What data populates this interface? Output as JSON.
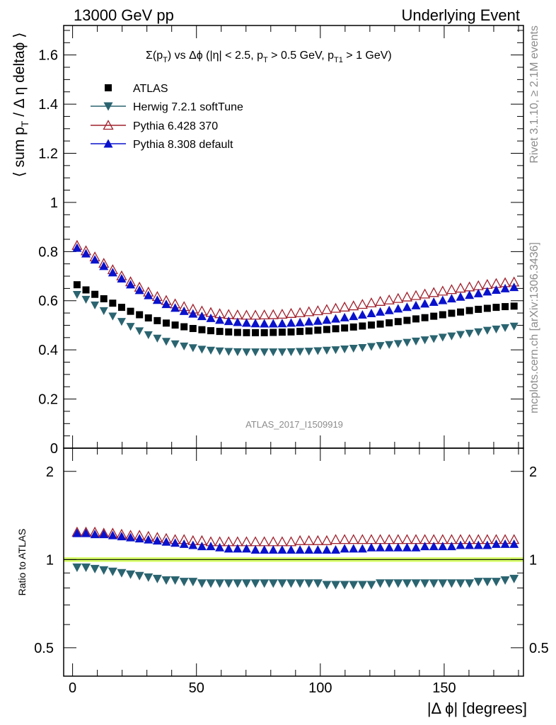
{
  "header": {
    "left": "13000 GeV pp",
    "right": "Underlying Event"
  },
  "side_labels": {
    "rivet": "Rivet 3.1.10, ≥ 2.1M events",
    "mcplots": "mcplots.cern.ch [arXiv:1306.3436]"
  },
  "chart_data": [
    {
      "type": "scatter",
      "title": "Σ(pT) vs Δϕ (|η| < 2.5, pT > 0.5 GeV, pT1 > 1 GeV)",
      "title_parts": {
        "sum": "Σ(p",
        "sub_t": "T",
        "rest1": ") vs Δϕ (|η| < 2.5, p",
        "rest2": " > 0.5 GeV, p",
        "sub_t1": "T1",
        "rest3": " > 1 GeV)"
      },
      "ylabel": "⟨ sum pT / Δ η deltaϕ ⟩",
      "ylabel_parts": {
        "a": "⟨ sum p",
        "sub": "T",
        "b": " / Δ η deltaϕ ⟩"
      },
      "analysis_label": "ATLAS_2017_I1509919",
      "xlim": [
        -3.6,
        182
      ],
      "ylim": [
        0,
        1.72
      ],
      "yticks": [
        "0",
        "0.2",
        "0.4",
        "0.6",
        "0.8",
        "1",
        "1.2",
        "1.4",
        "1.6"
      ],
      "x": [
        1.8,
        5.4,
        9,
        12.6,
        16.2,
        19.8,
        23.4,
        27,
        30.6,
        34.2,
        37.8,
        41.4,
        45,
        48.6,
        52.2,
        55.8,
        59.4,
        63,
        66.6,
        70.2,
        73.8,
        77.4,
        81,
        84.6,
        88.2,
        91.8,
        95.4,
        99,
        102.6,
        106.2,
        109.8,
        113.4,
        117,
        120.6,
        124.2,
        127.8,
        131.4,
        135,
        138.6,
        142.2,
        145.8,
        149.4,
        153,
        156.6,
        160.2,
        163.8,
        167.4,
        171,
        174.6,
        178.2
      ],
      "series": [
        {
          "name": "ATLAS",
          "marker": "square",
          "color": "#000000",
          "values": [
            0.665,
            0.644,
            0.626,
            0.608,
            0.59,
            0.573,
            0.557,
            0.543,
            0.53,
            0.519,
            0.509,
            0.501,
            0.494,
            0.487,
            0.482,
            0.478,
            0.475,
            0.473,
            0.471,
            0.47,
            0.47,
            0.47,
            0.471,
            0.472,
            0.473,
            0.475,
            0.477,
            0.48,
            0.483,
            0.486,
            0.489,
            0.493,
            0.497,
            0.501,
            0.505,
            0.51,
            0.515,
            0.52,
            0.526,
            0.531,
            0.537,
            0.543,
            0.549,
            0.554,
            0.56,
            0.565,
            0.569,
            0.573,
            0.576,
            0.578
          ]
        },
        {
          "name": "Herwig 7.2.1 softTune",
          "marker": "triangle-down",
          "color": "#2a6470",
          "values": [
            0.625,
            0.605,
            0.582,
            0.559,
            0.537,
            0.515,
            0.495,
            0.477,
            0.461,
            0.447,
            0.434,
            0.424,
            0.415,
            0.408,
            0.402,
            0.398,
            0.395,
            0.393,
            0.392,
            0.391,
            0.391,
            0.391,
            0.391,
            0.391,
            0.392,
            0.393,
            0.394,
            0.396,
            0.398,
            0.4,
            0.403,
            0.406,
            0.409,
            0.413,
            0.417,
            0.421,
            0.425,
            0.43,
            0.435,
            0.44,
            0.445,
            0.451,
            0.456,
            0.462,
            0.467,
            0.473,
            0.479,
            0.484,
            0.49,
            0.496
          ]
        },
        {
          "name": "Pythia 6.428 370",
          "marker": "triangle-up-open",
          "color": "#a0202c",
          "values": [
            0.825,
            0.803,
            0.778,
            0.752,
            0.726,
            0.701,
            0.677,
            0.655,
            0.635,
            0.617,
            0.601,
            0.587,
            0.576,
            0.566,
            0.558,
            0.552,
            0.547,
            0.544,
            0.542,
            0.541,
            0.541,
            0.542,
            0.543,
            0.545,
            0.548,
            0.551,
            0.555,
            0.559,
            0.564,
            0.569,
            0.574,
            0.579,
            0.585,
            0.591,
            0.597,
            0.603,
            0.609,
            0.615,
            0.621,
            0.627,
            0.633,
            0.639,
            0.645,
            0.651,
            0.656,
            0.661,
            0.666,
            0.67,
            0.673,
            0.676
          ]
        },
        {
          "name": "Pythia 8.308 default",
          "marker": "triangle-up",
          "color": "#0a12cc",
          "values": [
            0.815,
            0.792,
            0.767,
            0.741,
            0.715,
            0.69,
            0.666,
            0.643,
            0.622,
            0.603,
            0.586,
            0.571,
            0.558,
            0.547,
            0.537,
            0.529,
            0.522,
            0.517,
            0.513,
            0.51,
            0.508,
            0.507,
            0.507,
            0.508,
            0.51,
            0.512,
            0.515,
            0.518,
            0.522,
            0.527,
            0.532,
            0.537,
            0.543,
            0.549,
            0.555,
            0.561,
            0.568,
            0.574,
            0.581,
            0.588,
            0.595,
            0.602,
            0.609,
            0.616,
            0.623,
            0.63,
            0.637,
            0.644,
            0.65,
            0.655
          ]
        }
      ]
    },
    {
      "type": "scatter",
      "ylabel": "Ratio to ATLAS",
      "xlabel": "|Δ ϕ| [degrees]",
      "xlim": [
        -3.6,
        182
      ],
      "xticks": [
        "0",
        "50",
        "100",
        "150"
      ],
      "ylim": [
        0.4,
        2.4
      ],
      "ylog": true,
      "yticks": [
        "0.5",
        "1",
        "2"
      ],
      "reference_band": {
        "center": 1.0,
        "halfwidth": 0.018,
        "color": "#d8ff66"
      },
      "series": [
        {
          "name": "Herwig 7.2.1 softTune",
          "color": "#2a6470",
          "values": [
            0.94,
            0.94,
            0.93,
            0.92,
            0.91,
            0.9,
            0.89,
            0.88,
            0.87,
            0.86,
            0.85,
            0.85,
            0.84,
            0.84,
            0.83,
            0.83,
            0.83,
            0.83,
            0.83,
            0.83,
            0.83,
            0.83,
            0.83,
            0.83,
            0.83,
            0.83,
            0.83,
            0.83,
            0.82,
            0.82,
            0.82,
            0.82,
            0.82,
            0.82,
            0.83,
            0.83,
            0.83,
            0.83,
            0.83,
            0.83,
            0.83,
            0.83,
            0.83,
            0.83,
            0.83,
            0.84,
            0.84,
            0.84,
            0.85,
            0.86
          ]
        },
        {
          "name": "Pythia 6.428 370",
          "color": "#a0202c",
          "values": [
            1.24,
            1.24,
            1.24,
            1.23,
            1.23,
            1.22,
            1.21,
            1.21,
            1.2,
            1.19,
            1.18,
            1.17,
            1.17,
            1.16,
            1.16,
            1.15,
            1.15,
            1.15,
            1.15,
            1.15,
            1.15,
            1.15,
            1.15,
            1.15,
            1.15,
            1.16,
            1.16,
            1.16,
            1.16,
            1.17,
            1.17,
            1.17,
            1.17,
            1.17,
            1.17,
            1.17,
            1.17,
            1.17,
            1.17,
            1.17,
            1.17,
            1.17,
            1.17,
            1.17,
            1.17,
            1.17,
            1.17,
            1.17,
            1.17,
            1.17
          ]
        },
        {
          "name": "Pythia 8.308 default",
          "color": "#0a12cc",
          "values": [
            1.23,
            1.23,
            1.22,
            1.22,
            1.21,
            1.2,
            1.19,
            1.18,
            1.17,
            1.16,
            1.15,
            1.14,
            1.13,
            1.12,
            1.11,
            1.11,
            1.1,
            1.09,
            1.09,
            1.09,
            1.08,
            1.08,
            1.08,
            1.08,
            1.08,
            1.08,
            1.08,
            1.08,
            1.08,
            1.08,
            1.09,
            1.09,
            1.09,
            1.1,
            1.1,
            1.1,
            1.1,
            1.1,
            1.1,
            1.11,
            1.11,
            1.11,
            1.11,
            1.12,
            1.12,
            1.12,
            1.12,
            1.13,
            1.13,
            1.13
          ]
        }
      ]
    }
  ]
}
